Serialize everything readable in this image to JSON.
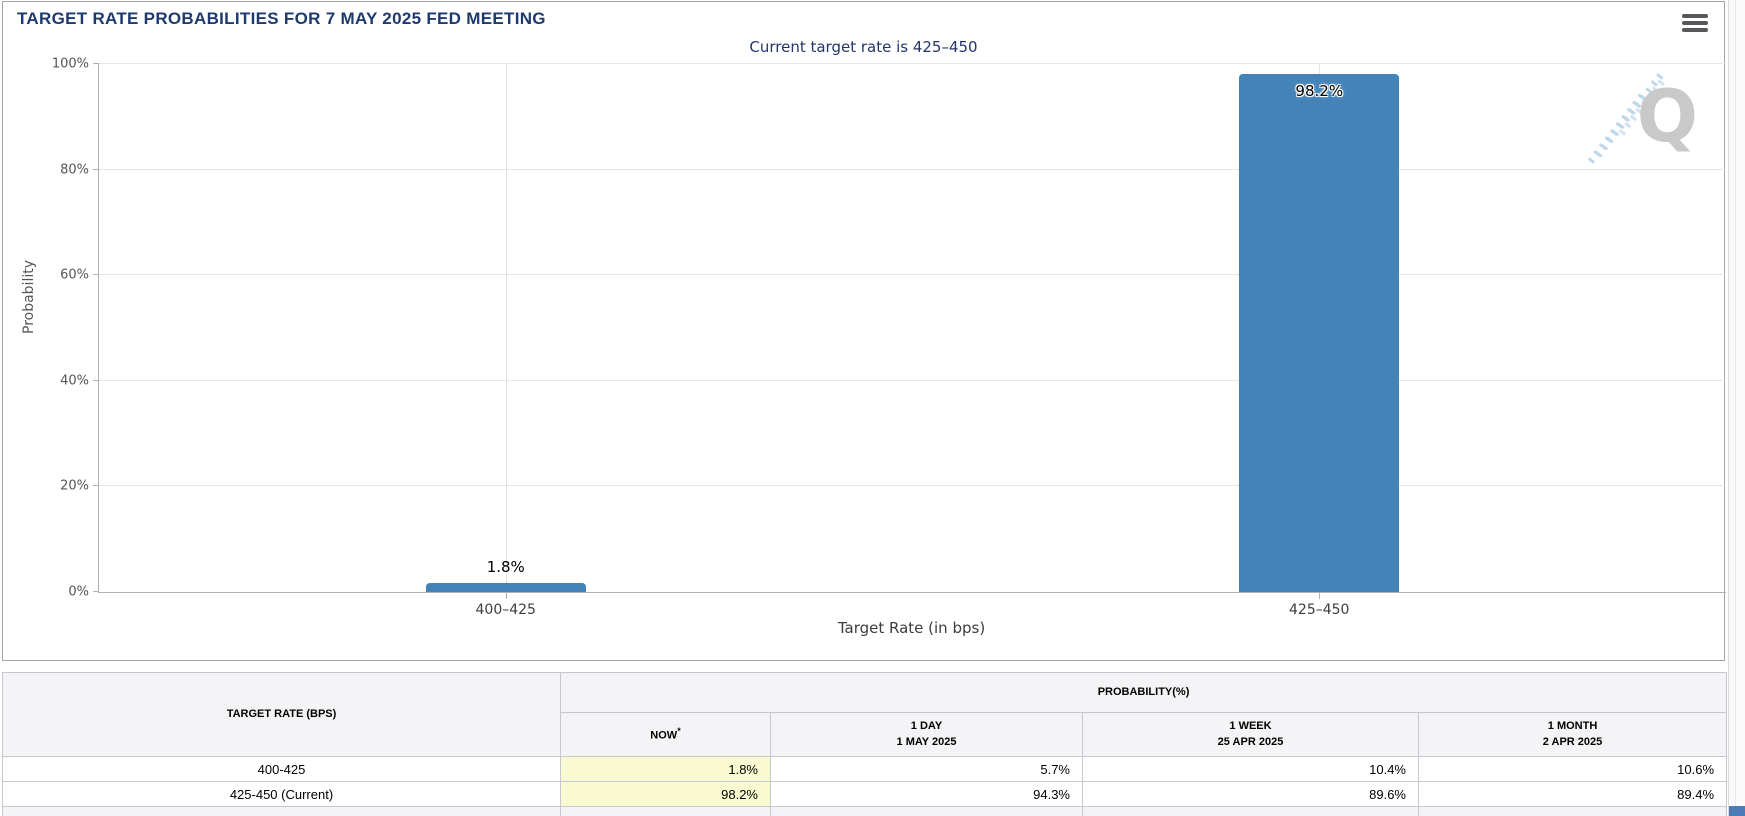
{
  "header": {
    "title": "TARGET RATE PROBABILITIES FOR 7 MAY 2025 FED MEETING"
  },
  "chart_data": {
    "type": "bar",
    "title": "Current target rate is 425–450",
    "categories": [
      "400–425",
      "425–450"
    ],
    "values": [
      1.8,
      98.2
    ],
    "value_labels": [
      "1.8%",
      "98.2%"
    ],
    "xlabel": "Target Rate (in bps)",
    "ylabel": "Probability",
    "ylim": [
      0,
      100
    ],
    "yticks": [
      0,
      20,
      40,
      60,
      80,
      100
    ],
    "ytick_labels": [
      "0%",
      "20%",
      "40%",
      "60%",
      "80%",
      "100%"
    ],
    "grid": true,
    "legend": false,
    "bar_color": "#4383b8",
    "inside_label_threshold": 90
  },
  "watermark": {
    "letter": "Q"
  },
  "table": {
    "rate_header": "TARGET RATE (BPS)",
    "group_header": "PROBABILITY(%)",
    "columns": [
      {
        "label": "NOW",
        "sup": "*",
        "sub": ""
      },
      {
        "label": "1 DAY",
        "sup": "",
        "sub": "1 MAY 2025"
      },
      {
        "label": "1 WEEK",
        "sup": "",
        "sub": "25 APR 2025"
      },
      {
        "label": "1 MONTH",
        "sup": "",
        "sub": "2 APR 2025"
      }
    ],
    "rows": [
      {
        "rate": "400-425",
        "values": [
          "1.8%",
          "5.7%",
          "10.4%",
          "10.6%"
        ]
      },
      {
        "rate": "425-450 (Current)",
        "values": [
          "98.2%",
          "94.3%",
          "89.6%",
          "89.4%"
        ]
      }
    ],
    "now_highlight": "#fafad2"
  },
  "colors": {
    "title_navy": "#1e3a6d",
    "bar_blue": "#4383b8",
    "now_cell_yellow": "#fafad2"
  }
}
